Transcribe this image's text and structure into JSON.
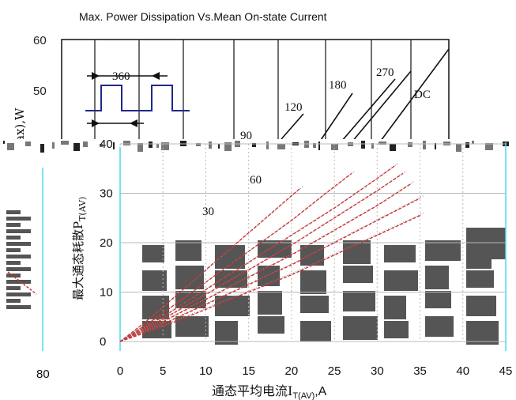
{
  "chart_data": {
    "type": "line",
    "title": "Max. Power Dissipation Vs.Mean On-state Current",
    "xlabel": "通态平均电流I",
    "xlabel_sub": "T(AV)",
    "xlabel_unit": ",A",
    "ylabel": "最大通态耗散P",
    "ylabel_sub": "T(AV)",
    "ylabel_old": "ax),W",
    "x_ticks": [
      "0",
      "5",
      "10",
      "15",
      "20",
      "25",
      "30",
      "35",
      "40",
      "45"
    ],
    "y_ticks_old": [
      "60",
      "50"
    ],
    "y_ticks": [
      "0",
      "10",
      "20",
      "30",
      "40"
    ],
    "left_fragment_tick": "80",
    "xlim": [
      0,
      45
    ],
    "ylim": [
      0,
      40
    ],
    "grid": true,
    "waveform_label": "360",
    "annotations": [
      "270",
      "180",
      "120",
      "90",
      "60",
      "30",
      "DC"
    ],
    "series": [
      {
        "name": "30",
        "x": [
          0,
          3,
          6,
          9,
          12,
          15,
          18,
          21
        ],
        "y": [
          0,
          4,
          8.5,
          13,
          17.5,
          22,
          26.5,
          31
        ]
      },
      {
        "name": "60",
        "x": [
          0,
          4,
          8,
          12,
          16,
          20,
          24,
          27
        ],
        "y": [
          0,
          4.5,
          9.5,
          14.5,
          19.5,
          24.5,
          30,
          34
        ]
      },
      {
        "name": "90",
        "x": [
          0,
          5,
          10,
          15,
          20,
          25,
          30,
          32
        ],
        "y": [
          0,
          5,
          10.5,
          16,
          21.5,
          27,
          33,
          35.5
        ]
      },
      {
        "name": "120",
        "x": [
          0,
          5,
          10,
          15,
          20,
          25,
          30,
          33
        ],
        "y": [
          0,
          4.5,
          9.5,
          14.5,
          19.5,
          25,
          30.5,
          34
        ]
      },
      {
        "name": "180",
        "x": [
          0,
          5,
          10,
          15,
          20,
          25,
          30,
          34
        ],
        "y": [
          0,
          4,
          8.5,
          13,
          17.5,
          22.5,
          27.5,
          32
        ]
      },
      {
        "name": "270",
        "x": [
          0,
          5,
          10,
          15,
          20,
          25,
          30,
          35
        ],
        "y": [
          0,
          3.5,
          7.5,
          11.5,
          15.5,
          20,
          24.5,
          29
        ]
      },
      {
        "name": "DC",
        "x": [
          0,
          5,
          10,
          15,
          20,
          25,
          30,
          35
        ],
        "y": [
          0,
          3,
          6.5,
          10,
          13.5,
          17.5,
          21.5,
          25.5
        ]
      }
    ]
  },
  "colors": {
    "axis": "#111111",
    "grid": "#b8b8b8",
    "curve_red": "#d42a2a",
    "curve_gray": "#8a8a8a",
    "wave": "#1f2a8a",
    "cyan": "#4fd8e8",
    "block": "#555555"
  }
}
